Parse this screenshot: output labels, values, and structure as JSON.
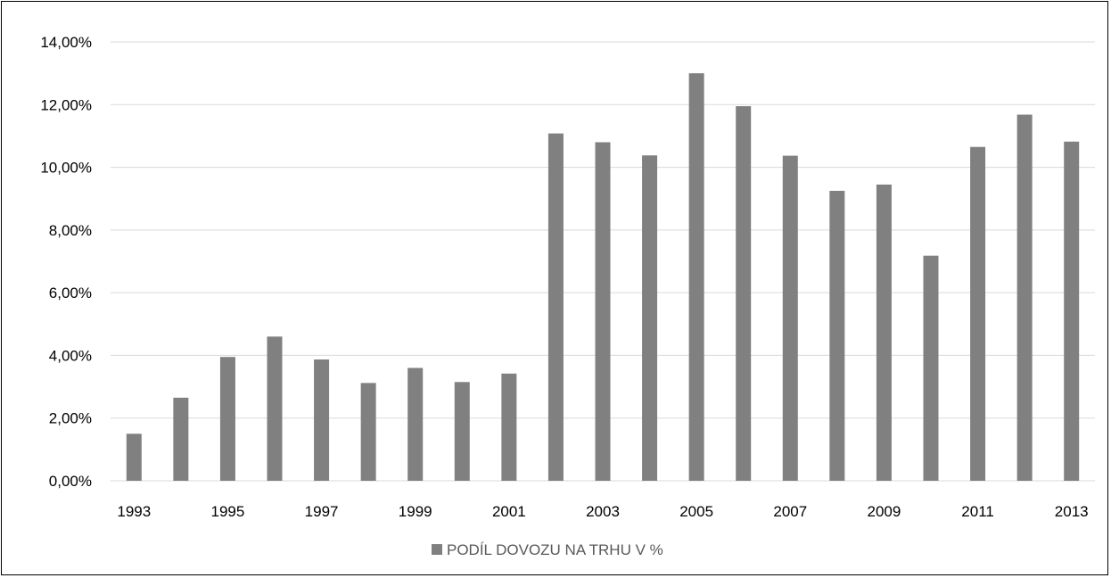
{
  "chart_data": {
    "type": "bar",
    "categories": [
      "1993",
      "1994",
      "1995",
      "1996",
      "1997",
      "1998",
      "1999",
      "2000",
      "2001",
      "2002",
      "2003",
      "2004",
      "2005",
      "2006",
      "2007",
      "2008",
      "2009",
      "2010",
      "2011",
      "2012",
      "2013"
    ],
    "x_tick_labels": [
      "1993",
      "1995",
      "1997",
      "1999",
      "2001",
      "2003",
      "2005",
      "2007",
      "2009",
      "2011",
      "2013"
    ],
    "series": [
      {
        "name": "PODÍL DOVOZU NA TRHU V %",
        "color": "#808080",
        "values": [
          1.5,
          2.65,
          3.95,
          4.6,
          3.87,
          3.12,
          3.6,
          3.15,
          3.42,
          11.08,
          10.8,
          10.38,
          13.0,
          11.95,
          10.37,
          9.25,
          9.45,
          7.18,
          10.65,
          11.68,
          10.82
        ]
      }
    ],
    "ylim": [
      0,
      14
    ],
    "y_ticks": [
      0,
      2,
      4,
      6,
      8,
      10,
      12,
      14
    ],
    "y_tick_labels": [
      "0,00%",
      "2,00%",
      "4,00%",
      "6,00%",
      "8,00%",
      "10,00%",
      "12,00%",
      "14,00%"
    ],
    "grid": true,
    "legend_position": "bottom",
    "gridline_color": "#d9d9d9"
  }
}
